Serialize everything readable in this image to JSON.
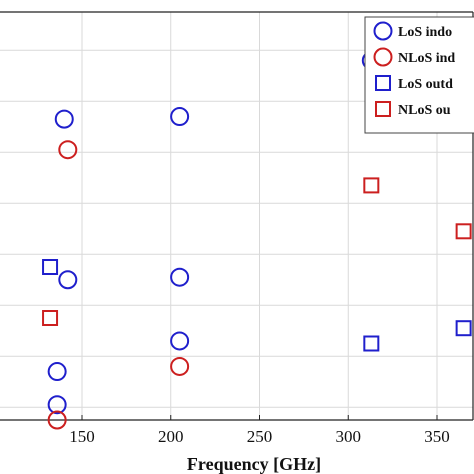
{
  "chart_data": {
    "type": "scatter",
    "xlabel": "Frequency [GHz]",
    "ylabel": "",
    "xlim": [
      100,
      370
    ],
    "ylim": [
      0,
      8
    ],
    "x_ticks": [
      150,
      200,
      250,
      300,
      350
    ],
    "grid": true,
    "legend_position": "top-right",
    "series": [
      {
        "name": "LoS indo",
        "marker": "circle",
        "color": "#1f1fcc",
        "points": [
          [
            140,
            5.9
          ],
          [
            205,
            5.95
          ],
          [
            313,
            7.05
          ],
          [
            142,
            2.75
          ],
          [
            205,
            2.8
          ],
          [
            205,
            1.55
          ],
          [
            136,
            0.95
          ],
          [
            136,
            0.3
          ]
        ]
      },
      {
        "name": "NLoS ind",
        "marker": "circle",
        "color": "#cc1f1f",
        "points": [
          [
            142,
            5.3
          ],
          [
            205,
            1.05
          ],
          [
            136,
            0.0
          ]
        ]
      },
      {
        "name": "LoS outd",
        "marker": "square",
        "color": "#1f1fcc",
        "points": [
          [
            132,
            3.0
          ],
          [
            313,
            1.5
          ],
          [
            365,
            1.8
          ]
        ]
      },
      {
        "name": "NLoS ou",
        "marker": "square",
        "color": "#cc1f1f",
        "points": [
          [
            313,
            4.6
          ],
          [
            365,
            3.7
          ],
          [
            132,
            2.0
          ]
        ]
      }
    ]
  }
}
